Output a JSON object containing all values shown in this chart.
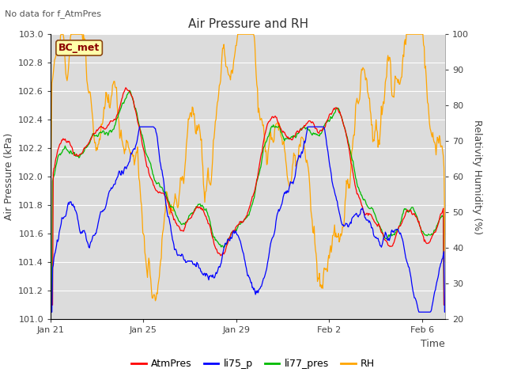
{
  "title": "Air Pressure and RH",
  "subtitle": "No data for f_AtmPres",
  "xlabel": "Time",
  "ylabel_left": "Air Pressure (kPa)",
  "ylabel_right": "Relativity Humidity (%)",
  "annotation": "BC_met",
  "ylim_left": [
    101.0,
    103.0
  ],
  "ylim_right": [
    20,
    100
  ],
  "yticks_left": [
    101.0,
    101.2,
    101.4,
    101.6,
    101.8,
    102.0,
    102.2,
    102.4,
    102.6,
    102.8,
    103.0
  ],
  "yticks_right": [
    20,
    30,
    40,
    50,
    60,
    70,
    80,
    90,
    100
  ],
  "xtick_labels": [
    "Jan 21",
    "Jan 25",
    "Jan 29",
    "Feb 2",
    "Feb 6"
  ],
  "xtick_positions": [
    0,
    4,
    8,
    12,
    16
  ],
  "xlim": [
    0,
    17
  ],
  "colors": {
    "AtmPres": "#ff0000",
    "li75_p": "#0000ff",
    "li77_pres": "#00bb00",
    "RH": "#ffa500"
  },
  "legend_labels": [
    "AtmPres",
    "li75_p",
    "li77_pres",
    "RH"
  ],
  "background_color": "#dcdcdc",
  "grid_color": "#ffffff",
  "fig_facecolor": "#ffffff",
  "title_fontsize": 11,
  "label_fontsize": 9,
  "tick_fontsize": 8,
  "annotation_fontsize": 9,
  "legend_fontsize": 9
}
